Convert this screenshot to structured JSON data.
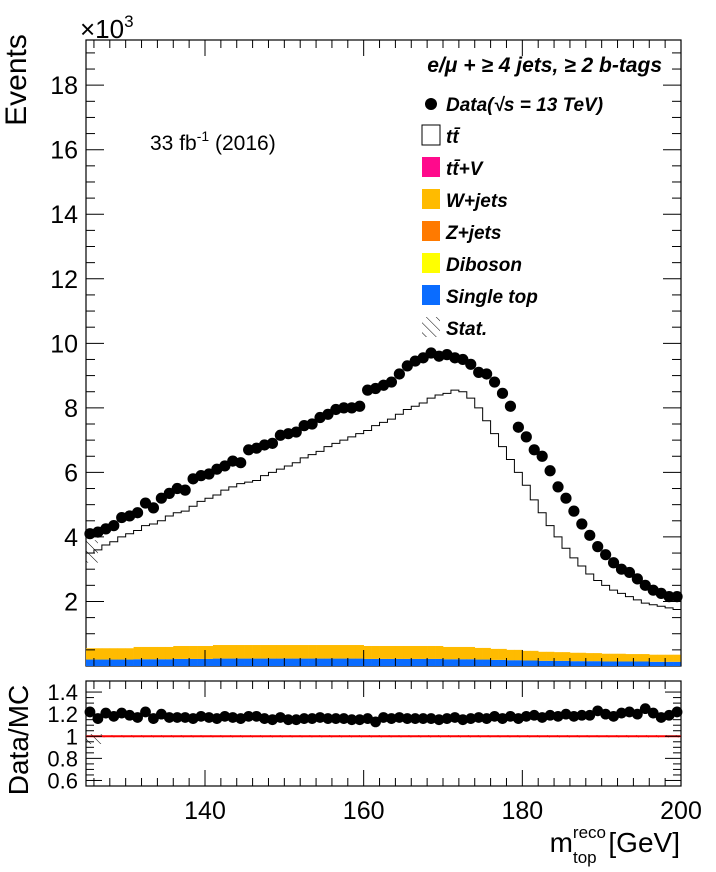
{
  "chart_data": [
    {
      "type": "scatter",
      "panel": "main",
      "title_line": "e/μ + ≥ 4 jets, ≥ 2 b-tags",
      "lumi_label": {
        "value": "33 fb",
        "exponent": "-1",
        "suffix": " (2016)"
      },
      "ylabel": "Events",
      "y_multiplier": {
        "base": "×10",
        "exponent": "3"
      },
      "xlim": [
        125,
        200
      ],
      "ylim": [
        0,
        19.4
      ],
      "y_ticks": [
        2,
        4,
        6,
        8,
        10,
        12,
        14,
        16,
        18
      ],
      "legend_placement": "top-right",
      "legend": [
        {
          "key": "data",
          "label": "Data(√s = 13 TeV)",
          "marker": "dot",
          "color": "#000000"
        },
        {
          "key": "ttbar",
          "label": "tt̄",
          "marker": "hollow-box",
          "color": "#ffffff"
        },
        {
          "key": "ttv",
          "label": "tt̄+V",
          "marker": "box",
          "color": "#ff0a8c"
        },
        {
          "key": "wjets",
          "label": "W+jets",
          "marker": "box",
          "color": "#ffbb00"
        },
        {
          "key": "zjets",
          "label": "Z+jets",
          "marker": "box",
          "color": "#ff7a00"
        },
        {
          "key": "diboson",
          "label": "Diboson",
          "marker": "box",
          "color": "#ffff00"
        },
        {
          "key": "singletop",
          "label": "Single top",
          "marker": "box",
          "color": "#0a6cff"
        },
        {
          "key": "stat",
          "label": "Stat.",
          "marker": "hatch",
          "color": "#000000"
        }
      ],
      "series": [
        {
          "name": "Data(√s = 13 TeV)",
          "x": [
            125.5,
            126.5,
            127.5,
            128.5,
            129.5,
            130.5,
            131.5,
            132.5,
            133.5,
            134.5,
            135.5,
            136.5,
            137.5,
            138.5,
            139.5,
            140.5,
            141.5,
            142.5,
            143.5,
            144.5,
            145.5,
            146.5,
            147.5,
            148.5,
            149.5,
            150.5,
            151.5,
            152.5,
            153.5,
            154.5,
            155.5,
            156.5,
            157.5,
            158.5,
            159.5,
            160.5,
            161.5,
            162.5,
            163.5,
            164.5,
            165.5,
            166.5,
            167.5,
            168.5,
            169.5,
            170.5,
            171.5,
            172.5,
            173.5,
            174.5,
            175.5,
            176.5,
            177.5,
            178.5,
            179.5,
            180.5,
            181.5,
            182.5,
            183.5,
            184.5,
            185.5,
            186.5,
            187.5,
            188.5,
            189.5,
            190.5,
            191.5,
            192.5,
            193.5,
            194.5,
            195.5,
            196.5,
            197.5,
            198.5,
            199.5
          ],
          "y": [
            4.1,
            4.15,
            4.25,
            4.35,
            4.6,
            4.65,
            4.75,
            5.05,
            4.9,
            5.2,
            5.35,
            5.5,
            5.45,
            5.8,
            5.9,
            5.95,
            6.1,
            6.2,
            6.35,
            6.3,
            6.7,
            6.75,
            6.85,
            6.9,
            7.15,
            7.2,
            7.25,
            7.45,
            7.5,
            7.7,
            7.8,
            7.95,
            8.0,
            8.0,
            8.05,
            8.55,
            8.6,
            8.7,
            8.8,
            9.05,
            9.3,
            9.45,
            9.55,
            9.7,
            9.6,
            9.65,
            9.55,
            9.5,
            9.35,
            9.1,
            9.05,
            8.8,
            8.45,
            8.05,
            7.4,
            7.1,
            6.7,
            6.5,
            6.05,
            5.55,
            5.2,
            4.8,
            4.4,
            4.05,
            3.7,
            3.45,
            3.2,
            3.0,
            2.9,
            2.7,
            2.5,
            2.35,
            2.25,
            2.15,
            2.15
          ]
        },
        {
          "name": "tt̄",
          "x": [
            125,
            126,
            127,
            128,
            129,
            130,
            131,
            132,
            133,
            134,
            135,
            136,
            137,
            138,
            139,
            140,
            141,
            142,
            143,
            144,
            145,
            146,
            147,
            148,
            149,
            150,
            151,
            152,
            153,
            154,
            155,
            156,
            157,
            158,
            159,
            160,
            161,
            162,
            163,
            164,
            165,
            166,
            167,
            168,
            169,
            170,
            171,
            172,
            173,
            174,
            175,
            176,
            177,
            178,
            179,
            180,
            181,
            182,
            183,
            184,
            185,
            186,
            187,
            188,
            189,
            190,
            191,
            192,
            193,
            194,
            195,
            196,
            197,
            198,
            199
          ],
          "y": [
            3.5,
            3.6,
            3.75,
            3.85,
            4.0,
            4.1,
            4.2,
            4.35,
            4.4,
            4.5,
            4.65,
            4.75,
            4.8,
            4.95,
            5.1,
            5.2,
            5.3,
            5.45,
            5.55,
            5.65,
            5.7,
            5.75,
            5.9,
            6.0,
            6.1,
            6.2,
            6.3,
            6.45,
            6.55,
            6.65,
            6.8,
            6.9,
            7.0,
            7.1,
            7.2,
            7.3,
            7.45,
            7.55,
            7.65,
            7.8,
            7.95,
            8.05,
            8.15,
            8.3,
            8.4,
            8.45,
            8.55,
            8.5,
            8.3,
            8.0,
            7.6,
            7.2,
            6.8,
            6.4,
            6.0,
            5.6,
            5.15,
            4.75,
            4.35,
            4.0,
            3.65,
            3.35,
            3.1,
            2.85,
            2.65,
            2.5,
            2.35,
            2.25,
            2.15,
            2.05,
            1.95,
            1.9,
            1.85,
            1.8,
            1.75
          ]
        },
        {
          "name": "W+jets",
          "x": [
            125,
            126,
            127,
            128,
            129,
            130,
            131,
            132,
            133,
            134,
            135,
            136,
            137,
            138,
            139,
            140,
            141,
            142,
            143,
            144,
            145,
            146,
            147,
            148,
            149,
            150,
            151,
            152,
            153,
            154,
            155,
            156,
            157,
            158,
            159,
            160,
            161,
            162,
            163,
            164,
            165,
            166,
            167,
            168,
            169,
            170,
            171,
            172,
            173,
            174,
            175,
            176,
            177,
            178,
            179,
            180,
            181,
            182,
            183,
            184,
            185,
            186,
            187,
            188,
            189,
            190,
            191,
            192,
            193,
            194,
            195,
            196,
            197,
            198,
            199
          ],
          "y": [
            0.35,
            0.35,
            0.35,
            0.35,
            0.35,
            0.35,
            0.38,
            0.38,
            0.38,
            0.38,
            0.38,
            0.4,
            0.4,
            0.4,
            0.4,
            0.4,
            0.42,
            0.42,
            0.42,
            0.42,
            0.42,
            0.42,
            0.42,
            0.42,
            0.42,
            0.42,
            0.42,
            0.42,
            0.42,
            0.42,
            0.42,
            0.42,
            0.42,
            0.42,
            0.42,
            0.4,
            0.4,
            0.4,
            0.4,
            0.4,
            0.4,
            0.4,
            0.4,
            0.4,
            0.4,
            0.38,
            0.38,
            0.38,
            0.38,
            0.36,
            0.36,
            0.34,
            0.34,
            0.32,
            0.32,
            0.3,
            0.3,
            0.28,
            0.28,
            0.27,
            0.27,
            0.26,
            0.26,
            0.25,
            0.25,
            0.24,
            0.24,
            0.24,
            0.23,
            0.23,
            0.23,
            0.22,
            0.22,
            0.22,
            0.22
          ]
        },
        {
          "name": "Single top",
          "x": [
            125,
            126,
            127,
            128,
            129,
            130,
            131,
            132,
            133,
            134,
            135,
            136,
            137,
            138,
            139,
            140,
            141,
            142,
            143,
            144,
            145,
            146,
            147,
            148,
            149,
            150,
            151,
            152,
            153,
            154,
            155,
            156,
            157,
            158,
            159,
            160,
            161,
            162,
            163,
            164,
            165,
            166,
            167,
            168,
            169,
            170,
            171,
            172,
            173,
            174,
            175,
            176,
            177,
            178,
            179,
            180,
            181,
            182,
            183,
            184,
            185,
            186,
            187,
            188,
            189,
            190,
            191,
            192,
            193,
            194,
            195,
            196,
            197,
            198,
            199
          ],
          "y": [
            0.2,
            0.2,
            0.2,
            0.2,
            0.2,
            0.2,
            0.21,
            0.21,
            0.21,
            0.21,
            0.21,
            0.22,
            0.22,
            0.22,
            0.22,
            0.22,
            0.23,
            0.23,
            0.23,
            0.23,
            0.23,
            0.23,
            0.23,
            0.23,
            0.23,
            0.23,
            0.23,
            0.23,
            0.23,
            0.23,
            0.23,
            0.23,
            0.23,
            0.23,
            0.23,
            0.22,
            0.22,
            0.22,
            0.22,
            0.22,
            0.22,
            0.22,
            0.22,
            0.22,
            0.22,
            0.21,
            0.21,
            0.21,
            0.21,
            0.2,
            0.2,
            0.19,
            0.19,
            0.18,
            0.18,
            0.17,
            0.17,
            0.16,
            0.16,
            0.16,
            0.16,
            0.15,
            0.15,
            0.15,
            0.15,
            0.14,
            0.14,
            0.14,
            0.14,
            0.14,
            0.14,
            0.13,
            0.13,
            0.13,
            0.13
          ]
        }
      ]
    },
    {
      "type": "scatter",
      "panel": "ratio",
      "ylabel": "Data/MC",
      "xlabel": {
        "symbol": "m",
        "sup": "reco",
        "sub": "top",
        "unit": " [GeV]"
      },
      "xlim": [
        125,
        200
      ],
      "ylim": [
        0.55,
        1.5
      ],
      "y_ticks": [
        0.6,
        0.8,
        1,
        1.2,
        1.4
      ],
      "x_ticks": [
        140,
        160,
        180,
        200
      ],
      "reference_line": {
        "y": 1,
        "color": "#ff0000"
      },
      "series": [
        {
          "name": "Data/MC",
          "x": [
            125.5,
            126.5,
            127.5,
            128.5,
            129.5,
            130.5,
            131.5,
            132.5,
            133.5,
            134.5,
            135.5,
            136.5,
            137.5,
            138.5,
            139.5,
            140.5,
            141.5,
            142.5,
            143.5,
            144.5,
            145.5,
            146.5,
            147.5,
            148.5,
            149.5,
            150.5,
            151.5,
            152.5,
            153.5,
            154.5,
            155.5,
            156.5,
            157.5,
            158.5,
            159.5,
            160.5,
            161.5,
            162.5,
            163.5,
            164.5,
            165.5,
            166.5,
            167.5,
            168.5,
            169.5,
            170.5,
            171.5,
            172.5,
            173.5,
            174.5,
            175.5,
            176.5,
            177.5,
            178.5,
            179.5,
            180.5,
            181.5,
            182.5,
            183.5,
            184.5,
            185.5,
            186.5,
            187.5,
            188.5,
            189.5,
            190.5,
            191.5,
            192.5,
            193.5,
            194.5,
            195.5,
            196.5,
            197.5,
            198.5,
            199.5
          ],
          "y": [
            1.22,
            1.16,
            1.21,
            1.18,
            1.21,
            1.19,
            1.17,
            1.22,
            1.16,
            1.2,
            1.17,
            1.17,
            1.17,
            1.16,
            1.18,
            1.17,
            1.16,
            1.18,
            1.17,
            1.16,
            1.18,
            1.18,
            1.16,
            1.15,
            1.17,
            1.15,
            1.15,
            1.16,
            1.16,
            1.17,
            1.16,
            1.16,
            1.16,
            1.15,
            1.15,
            1.16,
            1.13,
            1.17,
            1.16,
            1.17,
            1.16,
            1.16,
            1.16,
            1.16,
            1.15,
            1.16,
            1.17,
            1.15,
            1.16,
            1.17,
            1.16,
            1.18,
            1.16,
            1.18,
            1.16,
            1.18,
            1.19,
            1.17,
            1.19,
            1.18,
            1.2,
            1.18,
            1.19,
            1.19,
            1.23,
            1.2,
            1.18,
            1.21,
            1.22,
            1.2,
            1.25,
            1.21,
            1.17,
            1.19,
            1.22
          ]
        }
      ]
    }
  ]
}
